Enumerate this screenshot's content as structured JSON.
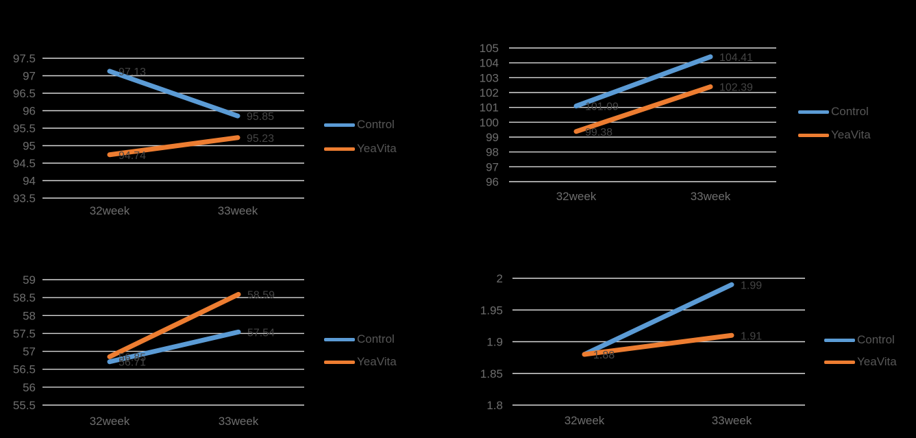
{
  "colors": {
    "control": "#5B9BD5",
    "yeavita": "#ED7D31",
    "gridline": "#D9D9D9",
    "tick_label": "#6E6E6E",
    "data_label": "#454545",
    "legend_label": "#565656",
    "bg": "#000000"
  },
  "legend": {
    "control_label": "Control",
    "yeavita_label": "YeaVita"
  },
  "chart_data": [
    {
      "type": "line",
      "title": "",
      "categories": [
        "32week",
        "33week"
      ],
      "series": [
        {
          "name": "Control",
          "color": "control",
          "values": [
            97.13,
            95.85
          ]
        },
        {
          "name": "YeaVita",
          "color": "yeavita",
          "values": [
            94.74,
            95.23
          ]
        }
      ],
      "ylim": [
        93.5,
        97.5
      ],
      "ytick_step": 0.5,
      "grid": true,
      "data_labels": true,
      "legend_position": "right"
    },
    {
      "type": "line",
      "title": "",
      "categories": [
        "32week",
        "33week"
      ],
      "series": [
        {
          "name": "Control",
          "color": "control",
          "values": [
            101.09,
            104.41
          ]
        },
        {
          "name": "YeaVita",
          "color": "yeavita",
          "values": [
            99.38,
            102.39
          ]
        }
      ],
      "ylim": [
        96,
        105
      ],
      "ytick_step": 1,
      "grid": true,
      "data_labels": true,
      "legend_position": "right"
    },
    {
      "type": "line",
      "title": "",
      "categories": [
        "32week",
        "33week"
      ],
      "series": [
        {
          "name": "Control",
          "color": "control",
          "values": [
            56.71,
            57.54
          ]
        },
        {
          "name": "YeaVita",
          "color": "yeavita",
          "values": [
            56.85,
            58.59
          ]
        }
      ],
      "ylim": [
        55.5,
        59
      ],
      "ytick_step": 0.5,
      "grid": true,
      "data_labels": true,
      "legend_position": "right"
    },
    {
      "type": "line",
      "title": "",
      "categories": [
        "32week",
        "33week"
      ],
      "series": [
        {
          "name": "Control",
          "color": "control",
          "values": [
            1.88,
            1.99
          ]
        },
        {
          "name": "YeaVita",
          "color": "yeavita",
          "values": [
            1.88,
            1.91
          ]
        }
      ],
      "ylim": [
        1.8,
        2
      ],
      "ytick_step": 0.05,
      "grid": true,
      "data_labels": true,
      "legend_position": "right"
    }
  ]
}
